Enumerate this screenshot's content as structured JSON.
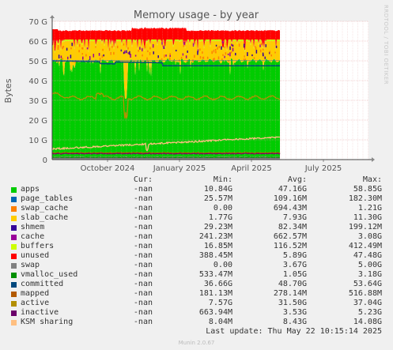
{
  "chart_data": {
    "type": "area",
    "title": "Memory usage - by year",
    "ylabel": "Bytes",
    "y_ticks": [
      "0",
      "10 G",
      "20 G",
      "30 G",
      "40 G",
      "50 G",
      "60 G",
      "70 G"
    ],
    "ylim": [
      0,
      70
    ],
    "y_unit": "G",
    "x_ticks": [
      "October 2024",
      "January 2025",
      "April 2025",
      "July 2025"
    ],
    "grid": true,
    "legend_columns": [
      "Cur:",
      "Min:",
      "Avg:",
      "Max:"
    ],
    "series": [
      {
        "name": "apps",
        "color": "#00cc00",
        "cur": "-nan",
        "min": "10.84G",
        "avg": "47.16G",
        "max": "58.85G"
      },
      {
        "name": "page_tables",
        "color": "#0066b3",
        "cur": "-nan",
        "min": "25.57M",
        "avg": "109.16M",
        "max": "182.30M"
      },
      {
        "name": "swap_cache",
        "color": "#ff8000",
        "cur": "-nan",
        "min": "0.00",
        "avg": "694.43M",
        "max": "1.21G"
      },
      {
        "name": "slab_cache",
        "color": "#ffcc00",
        "cur": "-nan",
        "min": "1.77G",
        "avg": "7.93G",
        "max": "11.30G"
      },
      {
        "name": "shmem",
        "color": "#330099",
        "cur": "-nan",
        "min": "29.23M",
        "avg": "82.34M",
        "max": "199.12M"
      },
      {
        "name": "cache",
        "color": "#990099",
        "cur": "-nan",
        "min": "241.23M",
        "avg": "662.57M",
        "max": "3.08G"
      },
      {
        "name": "buffers",
        "color": "#ccff00",
        "cur": "-nan",
        "min": "16.85M",
        "avg": "116.52M",
        "max": "412.49M"
      },
      {
        "name": "unused",
        "color": "#ff0000",
        "cur": "-nan",
        "min": "388.45M",
        "avg": "5.89G",
        "max": "47.48G"
      },
      {
        "name": "swap",
        "color": "#808080",
        "cur": "-nan",
        "min": "0.00",
        "avg": "3.67G",
        "max": "5.00G"
      },
      {
        "name": "vmalloc_used",
        "color": "#008f00",
        "cur": "-nan",
        "min": "533.47M",
        "avg": "1.05G",
        "max": "3.18G"
      },
      {
        "name": "committed",
        "color": "#00487d",
        "cur": "-nan",
        "min": "36.66G",
        "avg": "48.70G",
        "max": "53.64G"
      },
      {
        "name": "mapped",
        "color": "#b35a00",
        "cur": "-nan",
        "min": "181.13M",
        "avg": "278.14M",
        "max": "516.88M"
      },
      {
        "name": "active",
        "color": "#b38f00",
        "cur": "-nan",
        "min": "7.57G",
        "avg": "31.50G",
        "max": "37.04G"
      },
      {
        "name": "inactive",
        "color": "#6b006b",
        "cur": "-nan",
        "min": "663.94M",
        "avg": "3.53G",
        "max": "5.23G"
      },
      {
        "name": "KSM sharing",
        "color": "#ffbf80",
        "cur": "-nan",
        "min": "8.04M",
        "avg": "8.43G",
        "max": "14.08G"
      }
    ],
    "approx_stack_G": {
      "note_free": "values read off the chart",
      "swap": 1.5,
      "apps_top": 50,
      "slab_top": 60,
      "unused_top": 65,
      "committed": 47.5,
      "active": 31.5,
      "inactive": 3,
      "ksm": 9
    }
  },
  "footer": {
    "last_update": "Last update: Thu May 22 10:15:14 2025",
    "munin": "Munin 2.0.67",
    "side": "RRDTOOL / TOBI OETIKER"
  }
}
